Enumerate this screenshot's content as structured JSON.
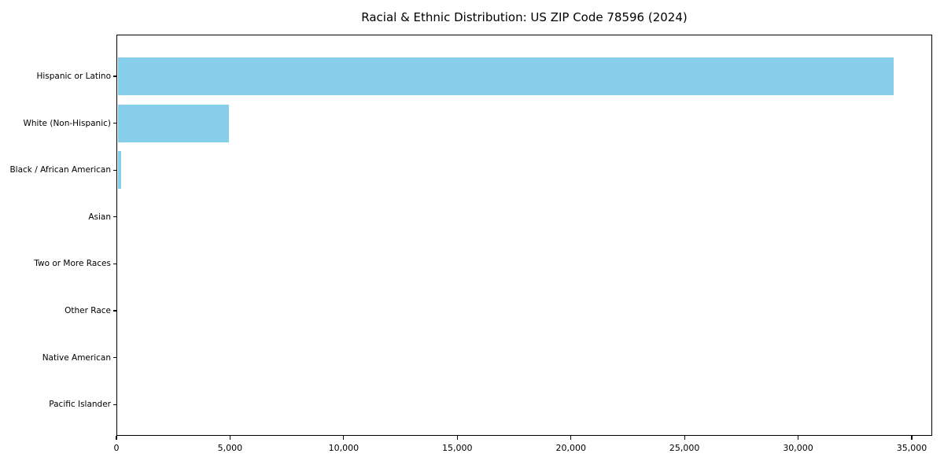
{
  "chart_data": {
    "type": "bar",
    "orientation": "horizontal",
    "title": "Racial & Ethnic Distribution: US ZIP Code 78596 (2024)",
    "categories": [
      "Hispanic or Latino",
      "White (Non-Hispanic)",
      "Black / African American",
      "Asian",
      "Two or More Races",
      "Other Race",
      "Native American",
      "Pacific Islander"
    ],
    "values": [
      34200,
      4950,
      200,
      50,
      40,
      30,
      15,
      5
    ],
    "xlabel": "",
    "ylabel": "",
    "xlim": [
      0,
      35900
    ],
    "x_ticks": [
      0,
      5000,
      10000,
      15000,
      20000,
      25000,
      30000,
      35000
    ],
    "x_tick_labels": [
      "0",
      "5,000",
      "10,000",
      "15,000",
      "20,000",
      "25,000",
      "30,000",
      "35,000"
    ],
    "bar_color": "#87CEEB",
    "spine_color": "#000000",
    "text_color": "#000000",
    "background_color": "#ffffff",
    "grid": false,
    "legend": null
  }
}
